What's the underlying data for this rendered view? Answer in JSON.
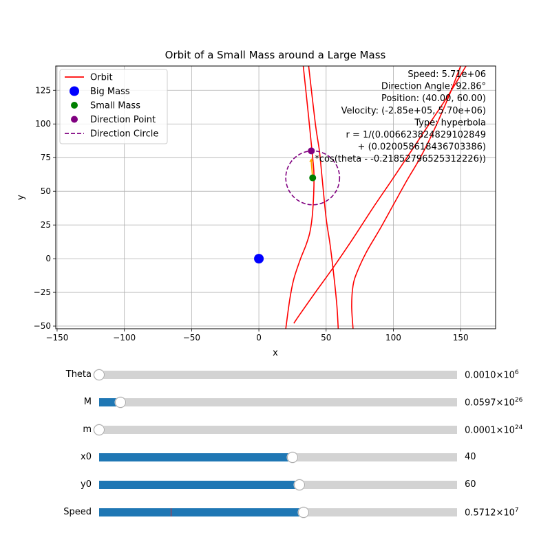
{
  "chart_data": {
    "type": "line",
    "title": "Orbit of a Small Mass around a Large Mass",
    "xlabel": "x",
    "ylabel": "y",
    "xlim": [
      -151,
      176
    ],
    "ylim": [
      -52,
      143
    ],
    "xticks": [
      -150,
      -100,
      -50,
      0,
      50,
      100,
      150
    ],
    "yticks": [
      -50,
      -25,
      0,
      25,
      50,
      75,
      100,
      125
    ],
    "grid": true,
    "legend_position": "top-left",
    "legend": [
      "Orbit",
      "Big Mass",
      "Small Mass",
      "Direction Point",
      "Direction Circle"
    ],
    "series": [
      {
        "name": "Orbit",
        "style": "line",
        "color": "#ff0000",
        "segments": [
          [
            [
              33,
              143
            ],
            [
              37,
              105
            ],
            [
              40,
              75
            ],
            [
              41,
              60
            ],
            [
              40,
              35
            ],
            [
              38,
              20
            ],
            [
              35,
              10
            ],
            [
              31,
              0
            ],
            [
              26,
              -15
            ],
            [
              23,
              -30
            ],
            [
              20,
              -52
            ]
          ],
          [
            [
              37,
              143
            ],
            [
              42,
              100
            ],
            [
              45,
              80
            ],
            [
              47,
              60
            ],
            [
              50,
              30
            ],
            [
              53,
              10
            ],
            [
              56,
              -15
            ],
            [
              58,
              -35
            ],
            [
              59,
              -52
            ]
          ],
          [
            [
              154,
              143
            ],
            [
              140,
              120
            ],
            [
              120,
              90
            ],
            [
              100,
              60
            ],
            [
              85,
              38
            ],
            [
              70,
              15
            ],
            [
              55,
              -7
            ],
            [
              42,
              -25
            ],
            [
              30,
              -42
            ],
            [
              26,
              -48
            ]
          ],
          [
            [
              70,
              -52
            ],
            [
              69,
              -35
            ],
            [
              70,
              -20
            ],
            [
              73,
              -10
            ],
            [
              80,
              5
            ],
            [
              90,
              22
            ],
            [
              100,
              40
            ],
            [
              110,
              58
            ],
            [
              120,
              75
            ],
            [
              130,
              95
            ],
            [
              141,
              120
            ],
            [
              150,
              143
            ]
          ]
        ]
      },
      {
        "name": "Big Mass",
        "style": "scatter",
        "color": "#0000ff",
        "x": [
          0
        ],
        "y": [
          0
        ]
      },
      {
        "name": "Small Mass",
        "style": "scatter",
        "color": "#008000",
        "x": [
          40
        ],
        "y": [
          60
        ]
      },
      {
        "name": "Direction Point",
        "style": "scatter",
        "color": "#800080",
        "x": [
          39
        ],
        "y": [
          80
        ]
      },
      {
        "name": "Direction Circle",
        "style": "dashed",
        "color": "#800080",
        "center": [
          40,
          60
        ],
        "radius": 20
      }
    ],
    "velocity_arrow": {
      "color": "#ffa500",
      "from": [
        40,
        60
      ],
      "to": [
        39,
        72
      ]
    }
  },
  "info": [
    "Speed: 5.71e+06",
    "Direction Angle: 92.86°",
    "Position: (40.00, 60.00)",
    "Velocity: (-2.85e+05, 5.70e+06)",
    "Type: hyperbola",
    "r = 1/(0.006623824829102849",
    "+ (0.020058618436703386)",
    "*cos(theta - -0.21852796525312226))"
  ],
  "sliders": [
    {
      "label": "Theta",
      "fraction": 0.0,
      "mantissa": "0.0010×10",
      "exp": "6"
    },
    {
      "label": "M",
      "fraction": 0.06,
      "mantissa": "0.0597×10",
      "exp": "26"
    },
    {
      "label": "m",
      "fraction": 0.0,
      "mantissa": "0.0001×10",
      "exp": "24"
    },
    {
      "label": "x0",
      "value": "40",
      "fraction": 0.54
    },
    {
      "label": "y0",
      "value": "60",
      "fraction": 0.56
    },
    {
      "label": "Speed",
      "fraction": 0.571,
      "init_fraction": 0.2,
      "mantissa": "0.5712×10",
      "exp": "7"
    }
  ]
}
